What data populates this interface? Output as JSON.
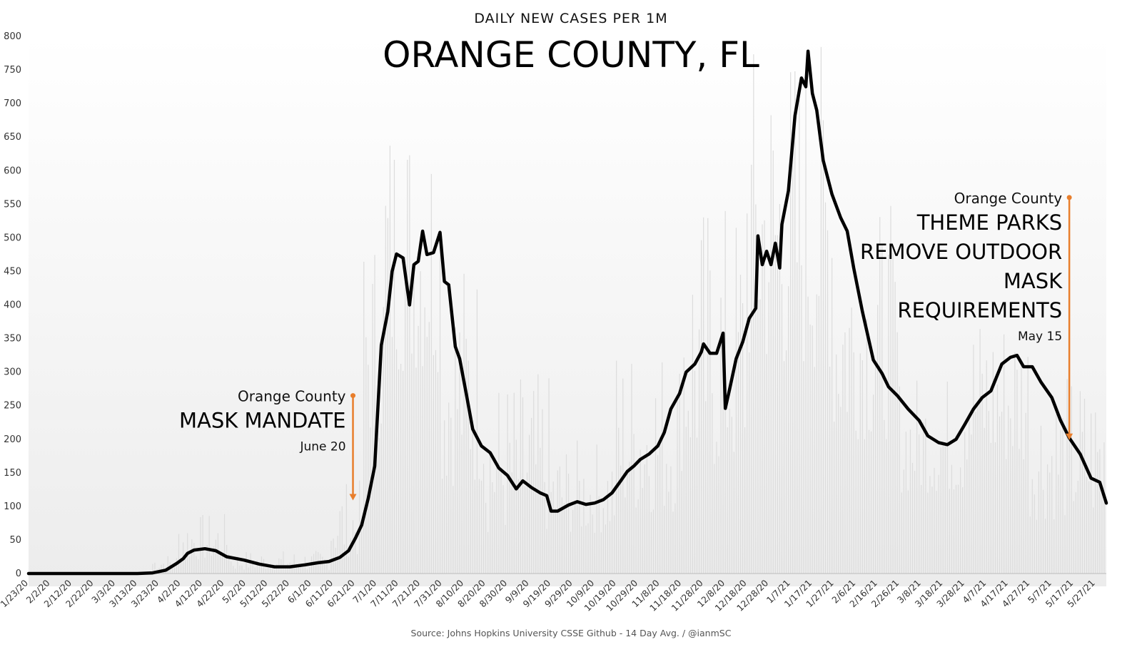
{
  "chart_data": {
    "type": "line",
    "supertitle": "DAILY NEW CASES PER 1M",
    "title": "ORANGE COUNTY, FL",
    "source": "Source: Johns Hopkins University CSSE Github - 14 Day Avg. / @ianmSC",
    "xlabel": "",
    "ylabel": "",
    "ylim": [
      0,
      800
    ],
    "yticks": [
      0,
      50,
      100,
      150,
      200,
      250,
      300,
      350,
      400,
      450,
      500,
      550,
      600,
      650,
      700,
      750,
      800
    ],
    "xlim": [
      "1/23/20",
      "6/1/21"
    ],
    "xticks": [
      "1/23/20",
      "2/2/20",
      "2/12/20",
      "2/22/20",
      "3/3/20",
      "3/13/20",
      "3/23/20",
      "4/2/20",
      "4/12/20",
      "4/22/20",
      "5/2/20",
      "5/12/20",
      "5/22/20",
      "6/1/20",
      "6/11/20",
      "6/21/20",
      "7/1/20",
      "7/11/20",
      "7/21/20",
      "7/31/20",
      "8/10/20",
      "8/20/20",
      "8/30/20",
      "9/9/20",
      "9/19/20",
      "9/29/20",
      "10/9/20",
      "10/19/20",
      "10/29/20",
      "11/8/20",
      "11/18/20",
      "11/28/20",
      "12/8/20",
      "12/18/20",
      "12/28/20",
      "1/7/21",
      "1/17/21",
      "1/27/21",
      "2/6/21",
      "2/16/21",
      "2/26/21",
      "3/8/21",
      "3/18/21",
      "3/28/21",
      "4/7/21",
      "4/17/21",
      "4/27/21",
      "5/7/21",
      "5/17/21",
      "5/27/21"
    ],
    "grid": false,
    "series": [
      {
        "kind": "line",
        "color": "#000000",
        "points": [
          [
            "1/23/20",
            0
          ],
          [
            "3/13/20",
            0
          ],
          [
            "3/20/20",
            1
          ],
          [
            "3/26/20",
            5
          ],
          [
            "3/31/20",
            15
          ],
          [
            "4/3/20",
            22
          ],
          [
            "4/5/20",
            30
          ],
          [
            "4/8/20",
            35
          ],
          [
            "4/13/20",
            37
          ],
          [
            "4/18/20",
            34
          ],
          [
            "4/23/20",
            25
          ],
          [
            "5/1/20",
            20
          ],
          [
            "5/8/20",
            14
          ],
          [
            "5/15/20",
            10
          ],
          [
            "5/22/20",
            10
          ],
          [
            "5/29/20",
            13
          ],
          [
            "6/4/20",
            16
          ],
          [
            "6/9/20",
            18
          ],
          [
            "6/14/20",
            24
          ],
          [
            "6/18/20",
            34
          ],
          [
            "6/21/20",
            52
          ],
          [
            "6/24/20",
            72
          ],
          [
            "6/27/20",
            112
          ],
          [
            "6/30/20",
            160
          ],
          [
            "7/3/20",
            340
          ],
          [
            "7/6/20",
            390
          ],
          [
            "7/8/20",
            450
          ],
          [
            "7/10/20",
            476
          ],
          [
            "7/13/20",
            470
          ],
          [
            "7/16/20",
            400
          ],
          [
            "7/18/20",
            460
          ],
          [
            "7/20/20",
            465
          ],
          [
            "7/22/20",
            510
          ],
          [
            "7/24/20",
            475
          ],
          [
            "7/27/20",
            478
          ],
          [
            "7/30/20",
            508
          ],
          [
            "8/1/20",
            435
          ],
          [
            "8/3/20",
            430
          ],
          [
            "8/6/20",
            338
          ],
          [
            "8/8/20",
            320
          ],
          [
            "8/11/20",
            268
          ],
          [
            "8/14/20",
            215
          ],
          [
            "8/18/20",
            190
          ],
          [
            "8/22/20",
            180
          ],
          [
            "8/26/20",
            157
          ],
          [
            "8/30/20",
            146
          ],
          [
            "9/3/20",
            126
          ],
          [
            "9/6/20",
            138
          ],
          [
            "9/10/20",
            128
          ],
          [
            "9/14/20",
            120
          ],
          [
            "9/17/20",
            116
          ],
          [
            "9/19/20",
            93
          ],
          [
            "9/22/20",
            93
          ],
          [
            "9/27/20",
            102
          ],
          [
            "10/1/20",
            107
          ],
          [
            "10/5/20",
            103
          ],
          [
            "10/9/20",
            105
          ],
          [
            "10/13/20",
            110
          ],
          [
            "10/17/20",
            120
          ],
          [
            "10/21/20",
            138
          ],
          [
            "10/24/20",
            152
          ],
          [
            "10/27/20",
            160
          ],
          [
            "10/30/20",
            170
          ],
          [
            "11/3/20",
            178
          ],
          [
            "11/7/20",
            190
          ],
          [
            "11/10/20",
            210
          ],
          [
            "11/13/20",
            245
          ],
          [
            "11/17/20",
            268
          ],
          [
            "11/20/20",
            300
          ],
          [
            "11/24/20",
            312
          ],
          [
            "11/27/20",
            330
          ],
          [
            "11/28/20",
            342
          ],
          [
            "12/1/20",
            328
          ],
          [
            "12/4/20",
            328
          ],
          [
            "12/7/20",
            358
          ],
          [
            "12/8/20",
            246
          ],
          [
            "12/10/20",
            275
          ],
          [
            "12/13/20",
            320
          ],
          [
            "12/16/20",
            345
          ],
          [
            "12/19/20",
            380
          ],
          [
            "12/22/20",
            395
          ],
          [
            "12/23/20",
            503
          ],
          [
            "12/25/20",
            460
          ],
          [
            "12/27/20",
            480
          ],
          [
            "12/29/20",
            460
          ],
          [
            "12/31/20",
            492
          ],
          [
            "1/2/21",
            455
          ],
          [
            "1/3/21",
            520
          ],
          [
            "1/6/21",
            570
          ],
          [
            "1/9/21",
            682
          ],
          [
            "1/12/21",
            738
          ],
          [
            "1/14/21",
            725
          ],
          [
            "1/15/21",
            778
          ],
          [
            "1/17/21",
            715
          ],
          [
            "1/19/21",
            690
          ],
          [
            "1/22/21",
            615
          ],
          [
            "1/26/21",
            565
          ],
          [
            "1/30/21",
            530
          ],
          [
            "2/2/21",
            510
          ],
          [
            "2/5/21",
            455
          ],
          [
            "2/9/21",
            390
          ],
          [
            "2/14/21",
            318
          ],
          [
            "2/18/21",
            298
          ],
          [
            "2/21/21",
            278
          ],
          [
            "2/25/21",
            265
          ],
          [
            "3/2/21",
            245
          ],
          [
            "3/7/21",
            228
          ],
          [
            "3/11/21",
            205
          ],
          [
            "3/16/21",
            195
          ],
          [
            "3/20/21",
            192
          ],
          [
            "3/24/21",
            200
          ],
          [
            "3/28/21",
            222
          ],
          [
            "4/1/21",
            245
          ],
          [
            "4/5/21",
            262
          ],
          [
            "4/9/21",
            272
          ],
          [
            "4/14/21",
            312
          ],
          [
            "4/18/21",
            322
          ],
          [
            "4/21/21",
            325
          ],
          [
            "4/24/21",
            308
          ],
          [
            "4/28/21",
            308
          ],
          [
            "5/2/21",
            285
          ],
          [
            "5/7/21",
            262
          ],
          [
            "5/11/21",
            228
          ],
          [
            "5/15/21",
            202
          ],
          [
            "5/20/21",
            178
          ],
          [
            "5/25/21",
            142
          ],
          [
            "5/29/21",
            136
          ],
          [
            "6/1/21",
            105
          ]
        ]
      },
      {
        "kind": "bars",
        "color": "#dcdcdc",
        "segments": [
          {
            "from": "3/20/20",
            "to": "4/1/20",
            "low": 5,
            "high": 30
          },
          {
            "from": "4/1/20",
            "to": "4/25/20",
            "low": 20,
            "high": 90
          },
          {
            "from": "4/25/20",
            "to": "6/10/20",
            "low": 5,
            "high": 35
          },
          {
            "from": "6/10/20",
            "to": "6/25/20",
            "low": 25,
            "high": 140
          },
          {
            "from": "6/25/20",
            "to": "7/5/20",
            "low": 200,
            "high": 520
          },
          {
            "from": "7/5/20",
            "to": "7/31/20",
            "low": 300,
            "high": 710
          },
          {
            "from": "7/31/20",
            "to": "8/20/20",
            "low": 130,
            "high": 480
          },
          {
            "from": "8/20/20",
            "to": "9/19/20",
            "low": 60,
            "high": 300
          },
          {
            "from": "9/19/20",
            "to": "10/19/20",
            "low": 60,
            "high": 200
          },
          {
            "from": "10/19/20",
            "to": "11/18/20",
            "low": 90,
            "high": 350
          },
          {
            "from": "11/18/20",
            "to": "12/18/20",
            "low": 150,
            "high": 560
          },
          {
            "from": "12/18/20",
            "to": "1/27/21",
            "low": 300,
            "high": 800
          },
          {
            "from": "1/27/21",
            "to": "2/26/21",
            "low": 200,
            "high": 550
          },
          {
            "from": "2/26/21",
            "to": "3/28/21",
            "low": 120,
            "high": 300
          },
          {
            "from": "3/28/21",
            "to": "4/27/21",
            "low": 160,
            "high": 400
          },
          {
            "from": "4/27/21",
            "to": "6/1/21",
            "low": 80,
            "high": 300
          }
        ]
      }
    ],
    "annotations": [
      {
        "date": "6/20/20",
        "arrow_from": 265,
        "arrow_to": 110,
        "label_top": "Orange County",
        "label_main": [
          "MASK MANDATE"
        ],
        "label_date": "June 20",
        "color": "#e87e2c"
      },
      {
        "date": "5/15/21",
        "arrow_from": 560,
        "arrow_to": 200,
        "label_top": "Orange County",
        "label_main": [
          "THEME PARKS",
          "REMOVE OUTDOOR",
          "MASK",
          "REQUIREMENTS"
        ],
        "label_date": "May 15",
        "color": "#e87e2c"
      }
    ],
    "colors": {
      "line": "#000000",
      "bars": "#dcdcdc",
      "annotation": "#e87e2c",
      "axis_text": "#333333"
    }
  }
}
